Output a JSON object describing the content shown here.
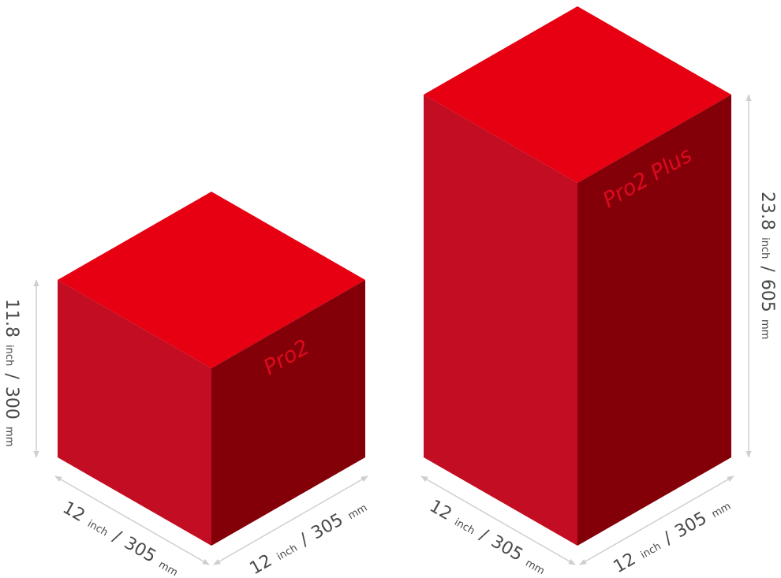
{
  "colors": {
    "top_face": "#e60012",
    "left_face": "#c30d23",
    "right_face": "#830008",
    "label_text": "#dd0a1f",
    "dimension_line": "#cfcfcf",
    "dimension_text": "#4a4a4a"
  },
  "boxes": {
    "pro2": {
      "name": "Pro2",
      "depth": {
        "value": "12",
        "unit1": "inch",
        "sep": "/",
        "value2": "305",
        "unit2": "mm"
      },
      "width": {
        "value": "12",
        "unit1": "inch",
        "sep": "/",
        "value2": "305",
        "unit2": "mm"
      },
      "height": {
        "value": "11.8",
        "unit1": "inch",
        "sep": "/",
        "value2": "300",
        "unit2": "mm"
      }
    },
    "pro2_plus": {
      "name": "Pro2 Plus",
      "depth": {
        "value": "12",
        "unit1": "inch",
        "sep": "/",
        "value2": "305",
        "unit2": "mm"
      },
      "width": {
        "value": "12",
        "unit1": "inch",
        "sep": "/",
        "value2": "305",
        "unit2": "mm"
      },
      "height": {
        "value": "23.8",
        "unit1": "inch",
        "sep": "/",
        "value2": "605",
        "unit2": "mm"
      }
    }
  },
  "icons": {
    "dimension_arrow": "double-headed-arrow-icon"
  }
}
